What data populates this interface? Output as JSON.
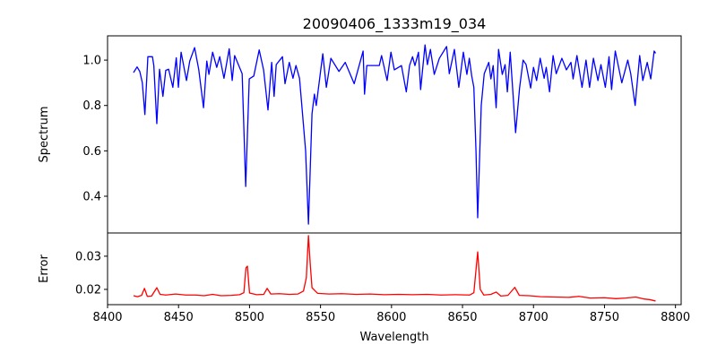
{
  "chart_data": [
    {
      "type": "line",
      "title": "20090406_1333m19_034",
      "xlabel": "",
      "ylabel": "Spectrum",
      "xlim": [
        8400,
        8804
      ],
      "ylim": [
        0.238,
        1.107
      ],
      "yticks": [
        0.4,
        0.6,
        0.8,
        1.0
      ],
      "ytick_labels": [
        "0.4",
        "0.6",
        "0.8",
        "1.0"
      ],
      "color": "#0000ff",
      "series": [
        {
          "name": "Spectrum",
          "points": [
            [
              8418.3,
              0.945
            ],
            [
              8420.8,
              0.97
            ],
            [
              8422.7,
              0.95
            ],
            [
              8424.5,
              0.9
            ],
            [
              8426.3,
              0.76
            ],
            [
              8428.4,
              1.015
            ],
            [
              8431.6,
              1.015
            ],
            [
              8432.6,
              0.976
            ],
            [
              8434.7,
              0.72
            ],
            [
              8436.6,
              0.96
            ],
            [
              8439,
              0.84
            ],
            [
              8441,
              0.955
            ],
            [
              8443,
              0.96
            ],
            [
              8446,
              0.88
            ],
            [
              8448.4,
              1.01
            ],
            [
              8449.9,
              0.88
            ],
            [
              8451.8,
              1.035
            ],
            [
              8455.6,
              0.91
            ],
            [
              8457.9,
              0.996
            ],
            [
              8461.3,
              1.055
            ],
            [
              8464.2,
              0.96
            ],
            [
              8467.6,
              0.79
            ],
            [
              8469.9,
              0.996
            ],
            [
              8471.4,
              0.937
            ],
            [
              8474,
              1.035
            ],
            [
              8476.9,
              0.968
            ],
            [
              8479,
              1.015
            ],
            [
              8482,
              0.92
            ],
            [
              8485.7,
              1.05
            ],
            [
              8487.8,
              0.91
            ],
            [
              8489.5,
              1.02
            ],
            [
              8494.8,
              0.94
            ],
            [
              8497.3,
              0.443
            ],
            [
              8499.8,
              0.917
            ],
            [
              8503,
              0.93
            ],
            [
              8506.8,
              1.045
            ],
            [
              8509.9,
              0.957
            ],
            [
              8513,
              0.78
            ],
            [
              8515.6,
              0.99
            ],
            [
              8517.3,
              0.84
            ],
            [
              8518.8,
              0.98
            ],
            [
              8523.2,
              1.015
            ],
            [
              8525,
              0.896
            ],
            [
              8528,
              0.99
            ],
            [
              8530.6,
              0.92
            ],
            [
              8532.7,
              0.976
            ],
            [
              8535.2,
              0.92
            ],
            [
              8537.1,
              0.78
            ],
            [
              8539.5,
              0.6
            ],
            [
              8541.5,
              0.277
            ],
            [
              8544,
              0.763
            ],
            [
              8545.7,
              0.85
            ],
            [
              8547,
              0.8
            ],
            [
              8551.6,
              1.028
            ],
            [
              8554.1,
              0.88
            ],
            [
              8557.3,
              1.008
            ],
            [
              8563,
              0.95
            ],
            [
              8567.4,
              0.99
            ],
            [
              8573.7,
              0.896
            ],
            [
              8580,
              1.04
            ],
            [
              8581,
              0.85
            ],
            [
              8582.6,
              0.976
            ],
            [
              8591.4,
              0.976
            ],
            [
              8593,
              1.02
            ],
            [
              8596.9,
              0.91
            ],
            [
              8599.6,
              1.035
            ],
            [
              8602,
              0.957
            ],
            [
              8607,
              0.976
            ],
            [
              8610.4,
              0.86
            ],
            [
              8612.7,
              0.976
            ],
            [
              8614.8,
              1.015
            ],
            [
              8616.5,
              0.976
            ],
            [
              8619,
              1.035
            ],
            [
              8620.5,
              0.87
            ],
            [
              8623.6,
              1.067
            ],
            [
              8625.3,
              0.98
            ],
            [
              8627.4,
              1.047
            ],
            [
              8630.1,
              0.937
            ],
            [
              8633.7,
              1.008
            ],
            [
              8638.8,
              1.06
            ],
            [
              8640.7,
              0.94
            ],
            [
              8644.3,
              1.047
            ],
            [
              8647.4,
              0.88
            ],
            [
              8650.6,
              1.035
            ],
            [
              8653.1,
              0.937
            ],
            [
              8654.8,
              1.008
            ],
            [
              8656.5,
              0.93
            ],
            [
              8658,
              0.88
            ],
            [
              8659.5,
              0.6
            ],
            [
              8660.7,
              0.305
            ],
            [
              8663.2,
              0.8
            ],
            [
              8665.3,
              0.94
            ],
            [
              8668.5,
              0.99
            ],
            [
              8670,
              0.917
            ],
            [
              8671.6,
              0.976
            ],
            [
              8673.7,
              0.79
            ],
            [
              8675.4,
              1.047
            ],
            [
              8678,
              0.937
            ],
            [
              8680,
              0.98
            ],
            [
              8681.6,
              0.86
            ],
            [
              8683.6,
              1.035
            ],
            [
              8687.4,
              0.68
            ],
            [
              8690.2,
              0.877
            ],
            [
              8692.7,
              1.0
            ],
            [
              8694.8,
              0.98
            ],
            [
              8698,
              0.877
            ],
            [
              8700,
              0.968
            ],
            [
              8702.2,
              0.91
            ],
            [
              8704.7,
              1.008
            ],
            [
              8707.5,
              0.92
            ],
            [
              8709,
              0.968
            ],
            [
              8711.3,
              0.86
            ],
            [
              8713.8,
              1.02
            ],
            [
              8716,
              0.94
            ],
            [
              8720,
              1.008
            ],
            [
              8723.2,
              0.957
            ],
            [
              8726.4,
              0.99
            ],
            [
              8727.9,
              0.917
            ],
            [
              8730.6,
              1.02
            ],
            [
              8734.2,
              0.88
            ],
            [
              8737,
              1.0
            ],
            [
              8739.5,
              0.88
            ],
            [
              8742.2,
              1.008
            ],
            [
              8745.4,
              0.91
            ],
            [
              8747.5,
              0.98
            ],
            [
              8750.6,
              0.88
            ],
            [
              8753.2,
              1.015
            ],
            [
              8755,
              0.87
            ],
            [
              8757.6,
              1.04
            ],
            [
              8762.2,
              0.9
            ],
            [
              8766.4,
              1.0
            ],
            [
              8768.5,
              0.94
            ],
            [
              8771.6,
              0.8
            ],
            [
              8774.8,
              1.02
            ],
            [
              8777,
              0.91
            ],
            [
              8780.1,
              0.99
            ],
            [
              8782.6,
              0.917
            ],
            [
              8785,
              1.04
            ],
            [
              8786,
              1.03
            ]
          ]
        }
      ]
    },
    {
      "type": "line",
      "title": "",
      "xlabel": "Wavelength",
      "ylabel": "Error",
      "xlim": [
        8400,
        8804
      ],
      "ylim": [
        0.0154,
        0.037
      ],
      "xticks": [
        8400,
        8450,
        8500,
        8550,
        8600,
        8650,
        8700,
        8750,
        8800
      ],
      "xtick_labels": [
        "8400",
        "8450",
        "8500",
        "8550",
        "8600",
        "8650",
        "8700",
        "8750",
        "8800"
      ],
      "yticks": [
        0.02,
        0.03
      ],
      "ytick_labels": [
        "0.02",
        "0.03"
      ],
      "color": "#ff0000",
      "series": [
        {
          "name": "Error",
          "points": [
            [
              8418.3,
              0.0181
            ],
            [
              8421,
              0.0178
            ],
            [
              8424,
              0.0182
            ],
            [
              8426,
              0.0203
            ],
            [
              8428,
              0.0179
            ],
            [
              8431,
              0.018
            ],
            [
              8434.7,
              0.0205
            ],
            [
              8437,
              0.0185
            ],
            [
              8441,
              0.0183
            ],
            [
              8448,
              0.0186
            ],
            [
              8455,
              0.0183
            ],
            [
              8462,
              0.0183
            ],
            [
              8468,
              0.0181
            ],
            [
              8474,
              0.0185
            ],
            [
              8480,
              0.0181
            ],
            [
              8487,
              0.0182
            ],
            [
              8493,
              0.0184
            ],
            [
              8496,
              0.019
            ],
            [
              8497.5,
              0.0265
            ],
            [
              8498.5,
              0.027
            ],
            [
              8500,
              0.0189
            ],
            [
              8505,
              0.0184
            ],
            [
              8510,
              0.0185
            ],
            [
              8512.4,
              0.0203
            ],
            [
              8515,
              0.0186
            ],
            [
              8521,
              0.0187
            ],
            [
              8528,
              0.0185
            ],
            [
              8534,
              0.0186
            ],
            [
              8538,
              0.0195
            ],
            [
              8540,
              0.0235
            ],
            [
              8541.5,
              0.0362
            ],
            [
              8542.7,
              0.028
            ],
            [
              8544,
              0.0205
            ],
            [
              8548,
              0.0188
            ],
            [
              8556,
              0.0186
            ],
            [
              8565,
              0.0187
            ],
            [
              8575,
              0.0185
            ],
            [
              8585,
              0.0186
            ],
            [
              8595,
              0.0184
            ],
            [
              8605,
              0.0185
            ],
            [
              8615,
              0.0184
            ],
            [
              8625,
              0.0185
            ],
            [
              8635,
              0.0183
            ],
            [
              8645,
              0.0184
            ],
            [
              8655,
              0.0183
            ],
            [
              8658,
              0.019
            ],
            [
              8660.7,
              0.0313
            ],
            [
              8662.5,
              0.02
            ],
            [
              8665,
              0.0183
            ],
            [
              8670,
              0.0185
            ],
            [
              8673.7,
              0.0192
            ],
            [
              8677,
              0.018
            ],
            [
              8682,
              0.0182
            ],
            [
              8686.8,
              0.0206
            ],
            [
              8690,
              0.0182
            ],
            [
              8697,
              0.0181
            ],
            [
              8705,
              0.0178
            ],
            [
              8715,
              0.0177
            ],
            [
              8725,
              0.0176
            ],
            [
              8732,
              0.0179
            ],
            [
              8740,
              0.0174
            ],
            [
              8750,
              0.0175
            ],
            [
              8758,
              0.0172
            ],
            [
              8765,
              0.0174
            ],
            [
              8772,
              0.0177
            ],
            [
              8778,
              0.0171
            ],
            [
              8782,
              0.0169
            ],
            [
              8786,
              0.0165
            ]
          ]
        }
      ]
    }
  ]
}
